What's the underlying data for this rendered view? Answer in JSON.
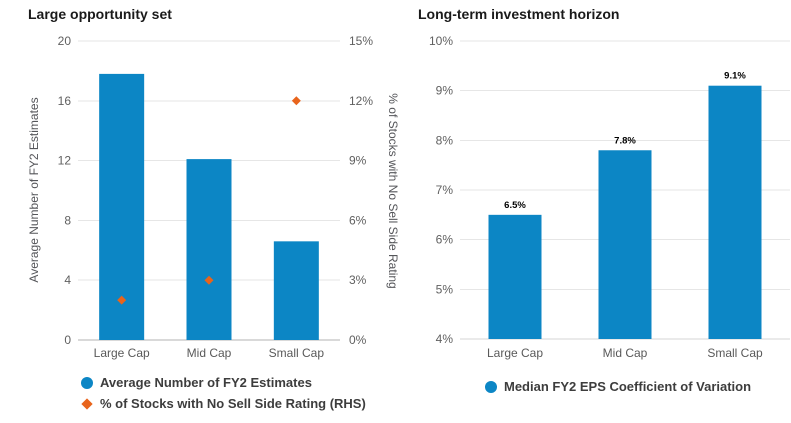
{
  "colors": {
    "bar_blue": "#0c86c5",
    "marker_orange": "#e8641c",
    "gridline": "#e6e6e6",
    "baseline_left_chart": "#b3b3b3",
    "baseline_right_chart": "#d4d4d4",
    "tick_text": "#606060",
    "category_text": "#595959",
    "axis_title_text": "#55565a",
    "chart_title_text": "#1a1a1a",
    "legend_text": "#3d3d3d",
    "data_label_text": "#000000",
    "background": "#ffffff"
  },
  "chart_data": [
    {
      "type": "bar",
      "title": "Large opportunity set",
      "categories": [
        "Large Cap",
        "Mid Cap",
        "Small Cap"
      ],
      "series": [
        {
          "name": "Average Number of FY2 Estimates",
          "type": "column",
          "axis": "left",
          "marker": "circle",
          "color": "#0c86c5",
          "values": [
            17.8,
            12.1,
            6.6
          ]
        },
        {
          "name": "% of Stocks with No Sell Side Rating (RHS)",
          "type": "scatter",
          "axis": "right",
          "marker": "diamond",
          "color": "#e8641c",
          "values": [
            2,
            3,
            12
          ]
        }
      ],
      "axes": {
        "left": {
          "title": "Average Number of FY2 Estimates",
          "min": 0,
          "max": 20,
          "tick_values": [
            20,
            16,
            12,
            8,
            4,
            0
          ],
          "tick_labels": [
            "20",
            "16",
            "12",
            "8",
            "4",
            "0"
          ]
        },
        "right": {
          "title": "% of Stocks with No Sell Side Rating",
          "min": 0,
          "max": 15,
          "tick_values": [
            15,
            12,
            9,
            6,
            3,
            0
          ],
          "tick_labels": [
            "15%",
            "12%",
            "9%",
            "6%",
            "3%",
            "0%"
          ]
        }
      },
      "grid": true,
      "legend_position": "bottom-left"
    },
    {
      "type": "bar",
      "title": "Long-term investment horizon",
      "categories": [
        "Large Cap",
        "Mid Cap",
        "Small Cap"
      ],
      "series": [
        {
          "name": "Median FY2 EPS Coefficient of Variation",
          "type": "column",
          "axis": "left",
          "marker": "circle",
          "color": "#0c86c5",
          "values": [
            6.5,
            7.8,
            9.1
          ],
          "data_labels": [
            "6.5%",
            "7.8%",
            "9.1%"
          ]
        }
      ],
      "axes": {
        "left": {
          "title": "",
          "min": 4,
          "max": 10,
          "tick_values": [
            10,
            9,
            8,
            7,
            6,
            5,
            4
          ],
          "tick_labels": [
            "10%",
            "9%",
            "8%",
            "7%",
            "6%",
            "5%",
            "4%"
          ]
        }
      },
      "grid": true,
      "legend_position": "bottom-left"
    }
  ]
}
